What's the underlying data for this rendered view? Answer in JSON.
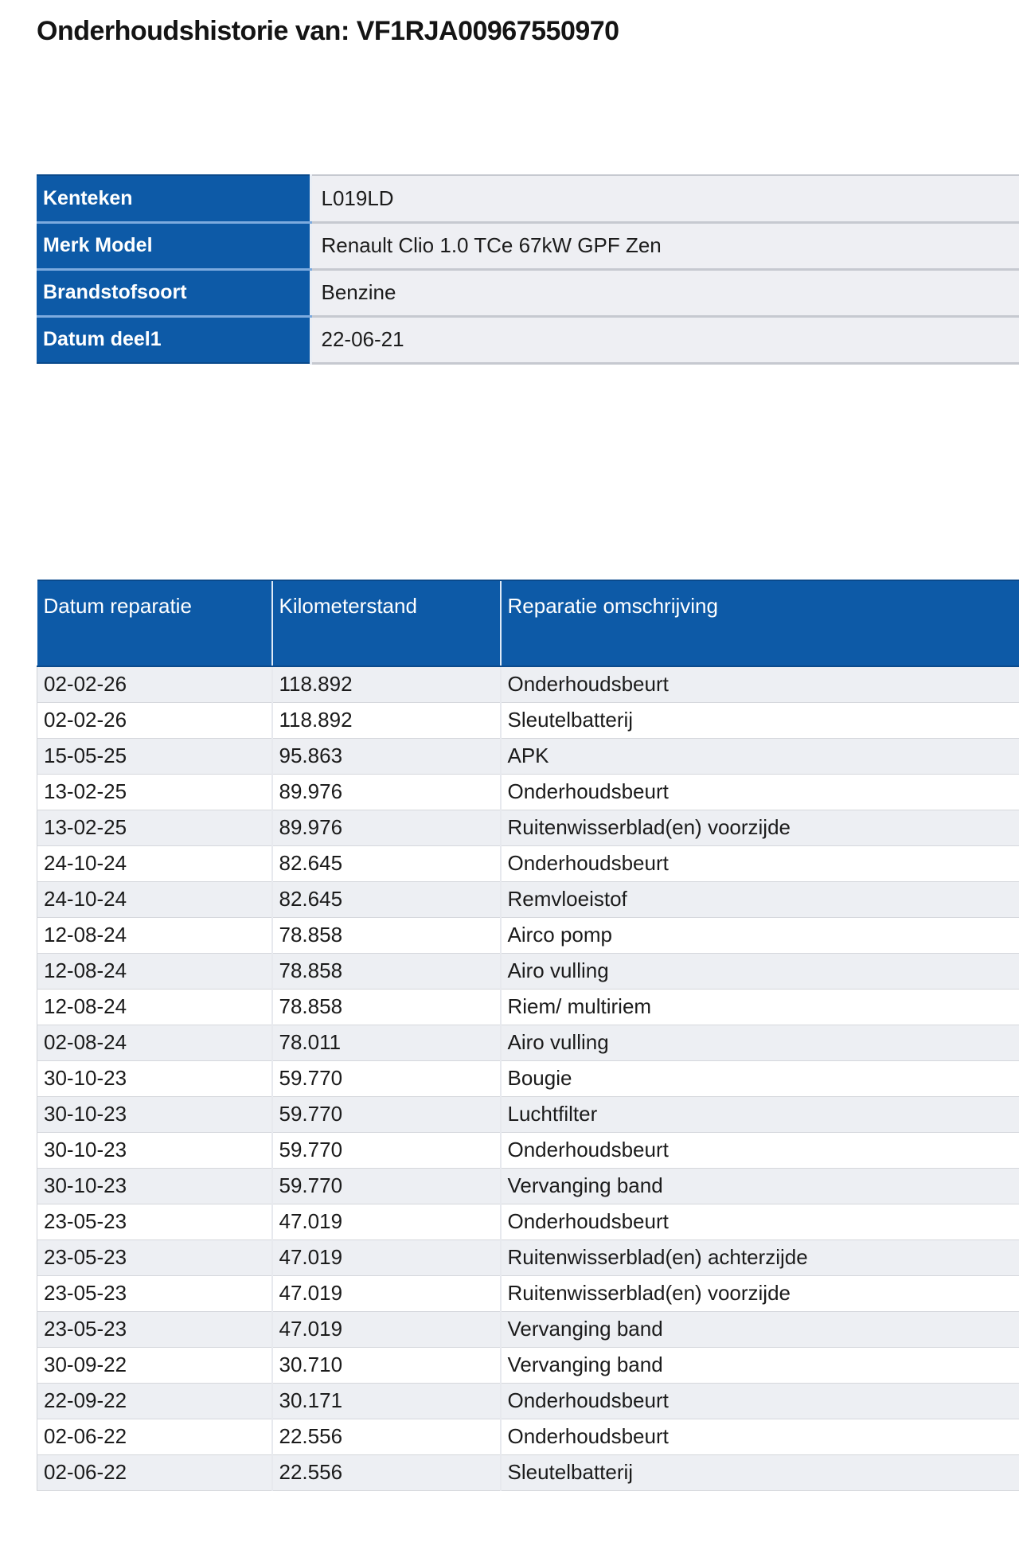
{
  "page": {
    "title": "Onderhoudshistorie van: VF1RJA00967550970"
  },
  "colors": {
    "header_blue": "#0d5aa7",
    "header_border_navy": "#0a4a8c",
    "label_separator_light_blue": "#7dabdf",
    "row_alt_gray": "#edeff3",
    "row_white": "#ffffff",
    "header_text": "#ffffff",
    "body_text": "#1b1b1b"
  },
  "vehicle_info": {
    "rows": [
      {
        "label": "Kenteken",
        "value": "L019LD"
      },
      {
        "label": "Merk Model",
        "value": "Renault Clio 1.0 TCe 67kW GPF Zen"
      },
      {
        "label": "Brandstofsoort",
        "value": "Benzine"
      },
      {
        "label": "Datum deel1",
        "value": "22-06-21"
      }
    ]
  },
  "service_history": {
    "columns": [
      "Datum reparatie",
      "Kilometerstand",
      "Reparatie omschrijving"
    ],
    "rows": [
      {
        "datum": "02-02-26",
        "km": "118.892",
        "omschrijving": "Onderhoudsbeurt"
      },
      {
        "datum": "02-02-26",
        "km": "118.892",
        "omschrijving": "Sleutelbatterij"
      },
      {
        "datum": "15-05-25",
        "km": "95.863",
        "omschrijving": "APK"
      },
      {
        "datum": "13-02-25",
        "km": "89.976",
        "omschrijving": "Onderhoudsbeurt"
      },
      {
        "datum": "13-02-25",
        "km": "89.976",
        "omschrijving": "Ruitenwisserblad(en) voorzijde"
      },
      {
        "datum": "24-10-24",
        "km": "82.645",
        "omschrijving": "Onderhoudsbeurt"
      },
      {
        "datum": "24-10-24",
        "km": "82.645",
        "omschrijving": "Remvloeistof"
      },
      {
        "datum": "12-08-24",
        "km": "78.858",
        "omschrijving": "Airco pomp"
      },
      {
        "datum": "12-08-24",
        "km": "78.858",
        "omschrijving": "Airo vulling"
      },
      {
        "datum": "12-08-24",
        "km": "78.858",
        "omschrijving": "Riem/ multiriem"
      },
      {
        "datum": "02-08-24",
        "km": "78.011",
        "omschrijving": "Airo vulling"
      },
      {
        "datum": "30-10-23",
        "km": "59.770",
        "omschrijving": "Bougie"
      },
      {
        "datum": "30-10-23",
        "km": "59.770",
        "omschrijving": "Luchtfilter"
      },
      {
        "datum": "30-10-23",
        "km": "59.770",
        "omschrijving": "Onderhoudsbeurt"
      },
      {
        "datum": "30-10-23",
        "km": "59.770",
        "omschrijving": "Vervanging band"
      },
      {
        "datum": "23-05-23",
        "km": "47.019",
        "omschrijving": "Onderhoudsbeurt"
      },
      {
        "datum": "23-05-23",
        "km": "47.019",
        "omschrijving": "Ruitenwisserblad(en) achterzijde"
      },
      {
        "datum": "23-05-23",
        "km": "47.019",
        "omschrijving": "Ruitenwisserblad(en) voorzijde"
      },
      {
        "datum": "23-05-23",
        "km": "47.019",
        "omschrijving": "Vervanging band"
      },
      {
        "datum": "30-09-22",
        "km": "30.710",
        "omschrijving": "Vervanging band"
      },
      {
        "datum": "22-09-22",
        "km": "30.171",
        "omschrijving": "Onderhoudsbeurt"
      },
      {
        "datum": "02-06-22",
        "km": "22.556",
        "omschrijving": "Onderhoudsbeurt"
      },
      {
        "datum": "02-06-22",
        "km": "22.556",
        "omschrijving": "Sleutelbatterij"
      }
    ]
  }
}
